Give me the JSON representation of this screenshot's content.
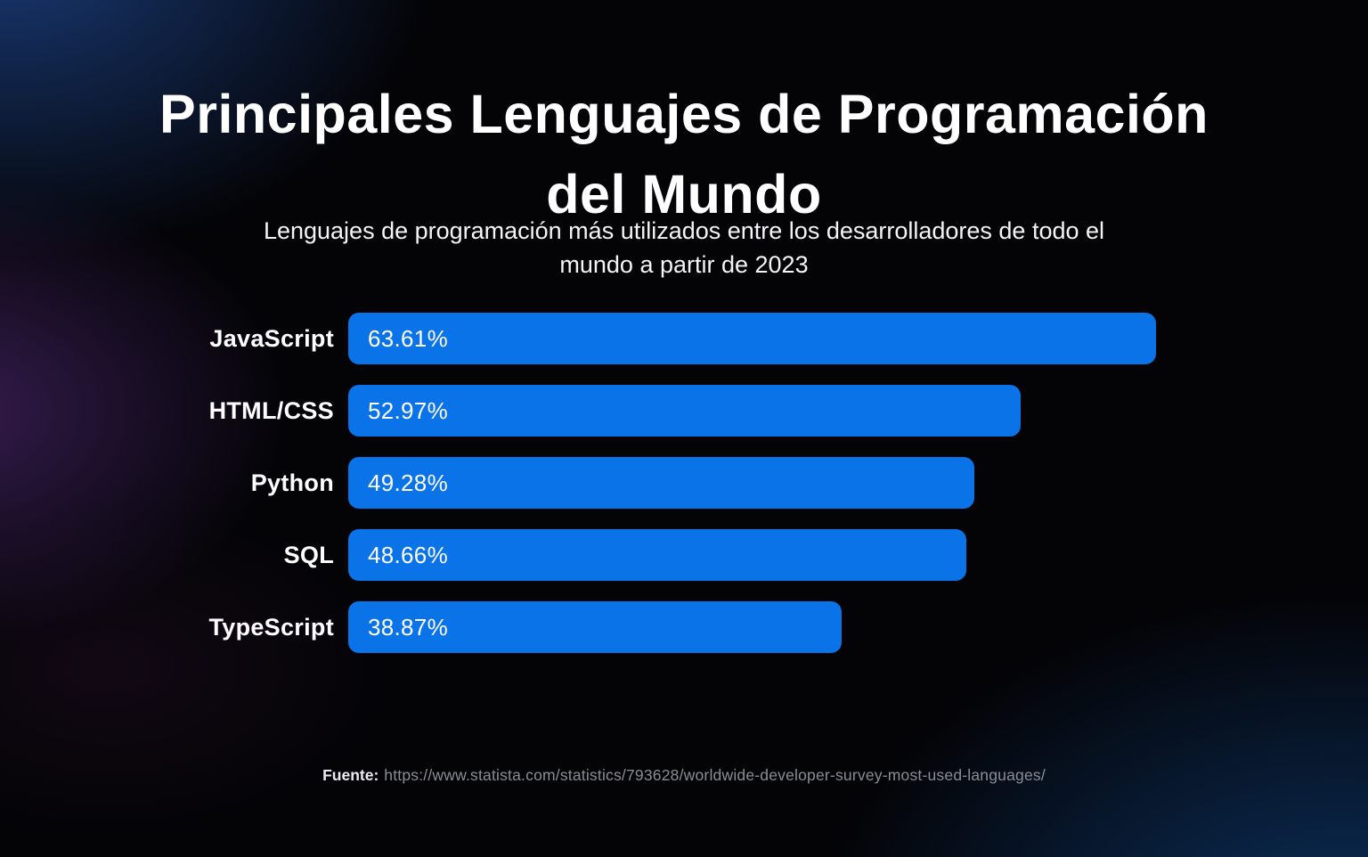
{
  "page": {
    "title_line1": "Principales Lenguajes de Programación",
    "title_line2": "del Mundo",
    "subtitle_line1": "Lenguajes de programación más utilizados entre los desarrolladores de todo el",
    "subtitle_line2": "mundo a partir de 2023",
    "footer": {
      "source_label": "Fuente:",
      "source_url": "https://www.statista.com/statistics/793628/worldwide-developer-survey-most-used-languages/"
    }
  },
  "colors": {
    "bar": "#0b73e8",
    "background_base": "#040407",
    "title_text": "#ffffff",
    "value_text": "#ffffff",
    "footer_url_text": "#8a8d95"
  },
  "chart_data": {
    "type": "bar",
    "orientation": "horizontal",
    "title": "Principales Lenguajes de Programación del Mundo",
    "subtitle": "Lenguajes de programación más utilizados entre los desarrolladores de todo el mundo a partir de 2023",
    "categories": [
      "JavaScript",
      "HTML/CSS",
      "Python",
      "SQL",
      "TypeScript"
    ],
    "values": [
      63.61,
      52.97,
      49.28,
      48.66,
      38.87
    ],
    "value_labels": [
      "63.61%",
      "52.97%",
      "49.28%",
      "48.66%",
      "38.87%"
    ],
    "xlabel": "",
    "ylabel": "",
    "xlim": [
      0,
      63.61
    ],
    "bar_color": "#0b73e8",
    "grid": false,
    "legend": false
  }
}
